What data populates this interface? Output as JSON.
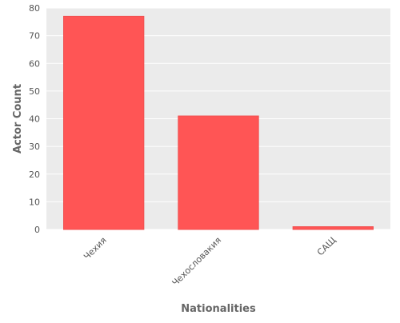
{
  "chart_data": {
    "type": "bar",
    "title": "",
    "xlabel": "Nationalities",
    "ylabel": "Actor Count",
    "categories": [
      "Чехия",
      "Чехословакия",
      "САЩ"
    ],
    "values": [
      77,
      41,
      1
    ],
    "ylim": [
      0,
      80
    ],
    "yticks": [
      0,
      10,
      20,
      30,
      40,
      50,
      60,
      70,
      80
    ],
    "grid": true,
    "legend": "none",
    "colors": {
      "bar": "#ff5555",
      "bar_edge": "#f05050",
      "plot_background": "#ebebeb",
      "grid": "#ffffff",
      "text": "#555555",
      "label": "#666666"
    }
  }
}
